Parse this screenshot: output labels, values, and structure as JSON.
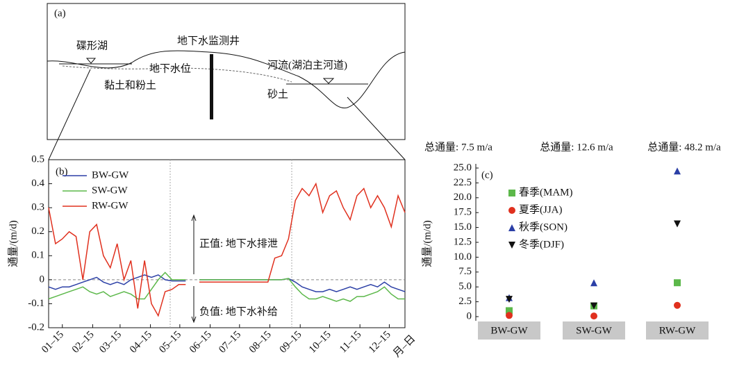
{
  "diagram": {
    "label": "(a)",
    "lake": "碟形湖",
    "well": "地下水监测井",
    "water_table": "地下水位",
    "clay": "黏土和粉土",
    "river": "河流(湖泊主河道)",
    "sand": "砂土"
  },
  "chart_data": [
    {
      "type": "line",
      "label": "(b)",
      "y_label": "通量/(m/d)",
      "x_label": "月–日",
      "positive_note": "正值: 地下水排泄",
      "negative_note": "负值: 地下水补给",
      "x": [
        1,
        8,
        15,
        22,
        29,
        36,
        43,
        50,
        57,
        64,
        71,
        78,
        85,
        92,
        99,
        106,
        113,
        120,
        127,
        134,
        141,
        148,
        155,
        162,
        169,
        176,
        183,
        190,
        197,
        204,
        211,
        218,
        225,
        232,
        239,
        246,
        253,
        260,
        267,
        274,
        281,
        288,
        295,
        302,
        309,
        316,
        323,
        330,
        337,
        344,
        351,
        358,
        365
      ],
      "xlim": [
        1,
        365
      ],
      "xticks": [
        {
          "value": 15,
          "label": "01–15"
        },
        {
          "value": 46,
          "label": "02–15"
        },
        {
          "value": 74,
          "label": "03–15"
        },
        {
          "value": 105,
          "label": "04–15"
        },
        {
          "value": 135,
          "label": "05–15"
        },
        {
          "value": 166,
          "label": "06–15"
        },
        {
          "value": 196,
          "label": "07–15"
        },
        {
          "value": 227,
          "label": "08–15"
        },
        {
          "value": 258,
          "label": "09–15"
        },
        {
          "value": 288,
          "label": "10–15"
        },
        {
          "value": 319,
          "label": "11–15"
        },
        {
          "value": 349,
          "label": "12–15"
        }
      ],
      "ylim": [
        -0.2,
        0.5
      ],
      "yticks": [
        -0.2,
        -0.1,
        0,
        0.1,
        0.2,
        0.3,
        0.4,
        0.5
      ],
      "series": [
        {
          "name": "BW-GW",
          "color": "#2b3fa6",
          "values": [
            -0.03,
            -0.04,
            -0.03,
            -0.03,
            -0.02,
            -0.01,
            0.0,
            0.01,
            -0.01,
            -0.02,
            -0.01,
            -0.02,
            0.0,
            0.01,
            0.02,
            0.01,
            0.02,
            0.0,
            -0.005,
            -0.005,
            -0.005,
            null,
            0,
            0,
            0,
            0,
            0,
            0,
            0,
            0,
            0,
            0,
            0,
            0,
            0,
            0.005,
            -0.01,
            -0.03,
            -0.04,
            -0.05,
            -0.05,
            -0.04,
            -0.05,
            -0.04,
            -0.03,
            -0.04,
            -0.03,
            -0.02,
            -0.03,
            -0.01,
            -0.03,
            -0.04,
            -0.05
          ]
        },
        {
          "name": "SW-GW",
          "color": "#5cb84a",
          "values": [
            -0.08,
            -0.07,
            -0.06,
            -0.05,
            -0.04,
            -0.03,
            -0.05,
            -0.06,
            -0.05,
            -0.07,
            -0.06,
            -0.05,
            -0.06,
            -0.08,
            -0.08,
            -0.04,
            0.0,
            0.03,
            0,
            0,
            0,
            null,
            0,
            0,
            0,
            0,
            0,
            0,
            0,
            0,
            0,
            0,
            0,
            0,
            0,
            0.005,
            -0.03,
            -0.06,
            -0.08,
            -0.08,
            -0.07,
            -0.08,
            -0.09,
            -0.08,
            -0.09,
            -0.07,
            -0.07,
            -0.06,
            -0.05,
            -0.03,
            -0.06,
            -0.08,
            -0.08
          ]
        },
        {
          "name": "RW-GW",
          "color": "#e0301e",
          "values": [
            0.3,
            0.15,
            0.17,
            0.2,
            0.18,
            0.0,
            0.2,
            0.23,
            0.1,
            0.05,
            0.15,
            0.0,
            0.08,
            -0.12,
            0.08,
            -0.1,
            -0.15,
            -0.05,
            -0.04,
            -0.02,
            -0.02,
            null,
            -0.01,
            -0.01,
            -0.01,
            -0.01,
            -0.01,
            -0.01,
            -0.01,
            -0.01,
            -0.01,
            -0.01,
            -0.01,
            0.09,
            0.1,
            0.17,
            0.33,
            0.38,
            0.35,
            0.4,
            0.28,
            0.35,
            0.37,
            0.3,
            0.25,
            0.35,
            0.38,
            0.3,
            0.35,
            0.3,
            0.22,
            0.35,
            0.28
          ]
        }
      ]
    },
    {
      "type": "scatter",
      "label": "(c)",
      "y_label": "通量/(m/d)",
      "annotations": [
        "总通量: 7.5 m/a",
        "总通量: 12.6 m/a",
        "总通量: 48.2 m/a"
      ],
      "categories": [
        "BW-GW",
        "SW-GW",
        "RW-GW"
      ],
      "ylim": [
        -0.7,
        25
      ],
      "yticks": [
        0,
        2.5,
        {
          "value": 5,
          "label": "5.0"
        },
        7.5,
        {
          "value": 10,
          "label": "10.0"
        },
        12.5,
        {
          "value": 15,
          "label": "15.0"
        },
        17.5,
        {
          "value": 20,
          "label": "20.0"
        },
        22.5,
        {
          "value": 25,
          "label": "25.0"
        }
      ],
      "series": [
        {
          "name": "春季(MAM)",
          "color": "#5cb84a",
          "marker": "square",
          "values": [
            1,
            1.8,
            5.7
          ]
        },
        {
          "name": "夏季(JJA)",
          "color": "#e0301e",
          "marker": "circle",
          "values": [
            0.2,
            0.1,
            1.9
          ]
        },
        {
          "name": "秋季(SON)",
          "color": "#2b3fa6",
          "marker": "triangle-up",
          "values": [
            3.2,
            5.7,
            24.5
          ]
        },
        {
          "name": "冬季(DJF)",
          "color": "#111111",
          "marker": "triangle-down",
          "values": [
            2.9,
            1.8,
            15.6
          ]
        }
      ]
    }
  ]
}
